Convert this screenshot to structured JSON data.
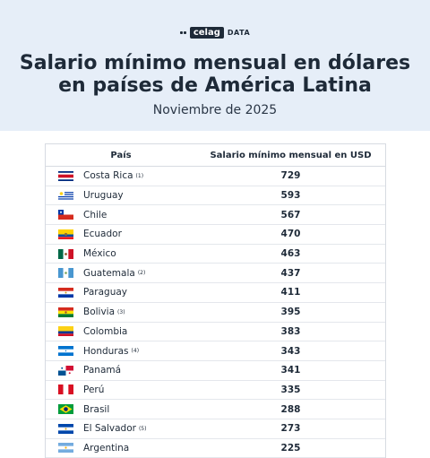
{
  "brand": {
    "logo_box": "celag",
    "logo_text": "DATA"
  },
  "header": {
    "title_line1": "Salario mínimo mensual en dólares",
    "title_line2": "en países de América Latina",
    "subtitle": "Noviembre de 2025"
  },
  "table": {
    "col_country": "País",
    "col_value": "Salario mínimo mensual en USD"
  },
  "chart_data": {
    "type": "table",
    "title": "Salario mínimo mensual en dólares en países de América Latina",
    "subtitle": "Noviembre de 2025",
    "columns": [
      "País",
      "Salario mínimo mensual en USD"
    ],
    "rows": [
      {
        "country": "Costa Rica",
        "note": "(1)",
        "value": 729,
        "flag": "costa-rica-flag-icon"
      },
      {
        "country": "Uruguay",
        "note": "",
        "value": 593,
        "flag": "uruguay-flag-icon"
      },
      {
        "country": "Chile",
        "note": "",
        "value": 567,
        "flag": "chile-flag-icon"
      },
      {
        "country": "Ecuador",
        "note": "",
        "value": 470,
        "flag": "ecuador-flag-icon"
      },
      {
        "country": "México",
        "note": "",
        "value": 463,
        "flag": "mexico-flag-icon"
      },
      {
        "country": "Guatemala",
        "note": "(2)",
        "value": 437,
        "flag": "guatemala-flag-icon"
      },
      {
        "country": "Paraguay",
        "note": "",
        "value": 411,
        "flag": "paraguay-flag-icon"
      },
      {
        "country": "Bolivia",
        "note": "(3)",
        "value": 395,
        "flag": "bolivia-flag-icon"
      },
      {
        "country": "Colombia",
        "note": "",
        "value": 383,
        "flag": "colombia-flag-icon"
      },
      {
        "country": "Honduras",
        "note": "(4)",
        "value": 343,
        "flag": "honduras-flag-icon"
      },
      {
        "country": "Panamá",
        "note": "",
        "value": 341,
        "flag": "panama-flag-icon"
      },
      {
        "country": "Perú",
        "note": "",
        "value": 335,
        "flag": "peru-flag-icon"
      },
      {
        "country": "Brasil",
        "note": "",
        "value": 288,
        "flag": "brazil-flag-icon"
      },
      {
        "country": "El Salvador",
        "note": "(5)",
        "value": 273,
        "flag": "el-salvador-flag-icon"
      },
      {
        "country": "Argentina",
        "note": "",
        "value": 225,
        "flag": "argentina-flag-icon"
      }
    ]
  }
}
